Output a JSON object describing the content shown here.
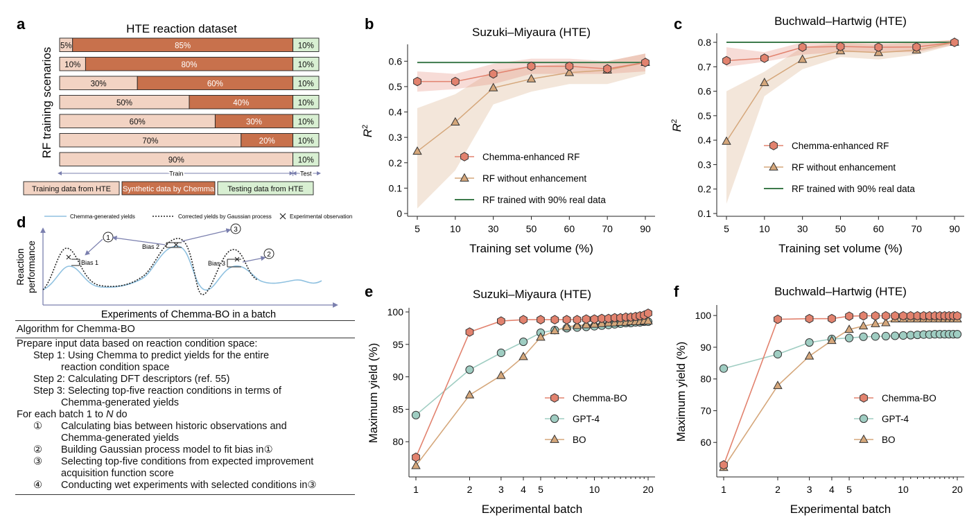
{
  "panel_labels": [
    "a",
    "b",
    "c",
    "d",
    "e",
    "f"
  ],
  "colors": {
    "hte": "#f2d3c3",
    "chemma": "#c8714c",
    "test": "#d8efd2",
    "chemma_rf": "#e2826e",
    "rf": "#d5a77b",
    "real90": "#3c7a4b",
    "gpt4": "#9fcdc2",
    "gp_line": "#222222",
    "yield_line": "#8fc1e0"
  },
  "chart_data": [
    {
      "id": "a",
      "type": "bar",
      "title": "HTE reaction dataset",
      "ylabel": "RF training scenarios",
      "axis_left_label": "Train",
      "axis_right_label": "Test",
      "rows": [
        {
          "hte": 5,
          "chemma": 85,
          "test": 10,
          "labels": [
            "5%",
            "85%",
            "10%"
          ]
        },
        {
          "hte": 10,
          "chemma": 80,
          "test": 10,
          "labels": [
            "10%",
            "80%",
            "10%"
          ]
        },
        {
          "hte": 30,
          "chemma": 60,
          "test": 10,
          "labels": [
            "30%",
            "60%",
            "10%"
          ]
        },
        {
          "hte": 50,
          "chemma": 40,
          "test": 10,
          "labels": [
            "50%",
            "40%",
            "10%"
          ]
        },
        {
          "hte": 60,
          "chemma": 30,
          "test": 10,
          "labels": [
            "60%",
            "30%",
            "10%"
          ]
        },
        {
          "hte": 70,
          "chemma": 20,
          "test": 10,
          "labels": [
            "70%",
            "20%",
            "10%"
          ]
        },
        {
          "hte": 90,
          "chemma": 0,
          "test": 10,
          "labels": [
            "90%",
            "",
            "10%"
          ]
        }
      ],
      "legend": [
        "Training data from HTE",
        "Synthetic data by Chemma",
        "Testing data from HTE"
      ]
    },
    {
      "id": "b",
      "type": "line",
      "title": "Suzuki–Miyaura (HTE)",
      "xlabel": "Training set volume (%)",
      "ylabel": "R",
      "ylabel_sup": "2",
      "categories": [
        "5",
        "10",
        "30",
        "50",
        "60",
        "70",
        "90"
      ],
      "ylim": [
        0,
        0.65
      ],
      "yticks": [
        0,
        0.1,
        0.2,
        0.3,
        0.4,
        0.5,
        0.6
      ],
      "ytick_labels": [
        "0",
        "0.1",
        "0.2",
        "0.3",
        "0.4",
        "0.5",
        "0.6"
      ],
      "series": [
        {
          "name": "Chemma-enhanced RF",
          "values": [
            0.52,
            0.52,
            0.55,
            0.58,
            0.58,
            0.57,
            0.595
          ],
          "lower": [
            0.48,
            0.49,
            0.51,
            0.55,
            0.55,
            0.55,
            0.56
          ],
          "upper": [
            0.56,
            0.55,
            0.59,
            0.61,
            0.61,
            0.6,
            0.63
          ]
        },
        {
          "name": "RF without enhancement",
          "values": [
            0.245,
            0.36,
            0.495,
            0.53,
            0.555,
            0.565,
            0.595
          ],
          "lower": [
            0.02,
            0.17,
            0.43,
            0.48,
            0.51,
            0.51,
            0.55
          ],
          "upper": [
            0.415,
            0.47,
            0.565,
            0.58,
            0.59,
            0.6,
            0.63
          ]
        },
        {
          "name": "RF trained with 90% real data",
          "constant": 0.595
        }
      ]
    },
    {
      "id": "c",
      "type": "line",
      "title": "Buchwald–Hartwig (HTE)",
      "xlabel": "Training set volume (%)",
      "ylabel": "R",
      "ylabel_sup": "2",
      "categories": [
        "5",
        "10",
        "30",
        "50",
        "60",
        "70",
        "90"
      ],
      "ylim": [
        0.1,
        0.82
      ],
      "yticks": [
        0.1,
        0.2,
        0.3,
        0.4,
        0.5,
        0.6,
        0.7,
        0.8
      ],
      "ytick_labels": [
        "0.1",
        "0.2",
        "0.3",
        "0.4",
        "0.5",
        "0.6",
        "0.7",
        "0.8"
      ],
      "series": [
        {
          "name": "Chemma-enhanced RF",
          "values": [
            0.725,
            0.735,
            0.78,
            0.783,
            0.78,
            0.781,
            0.8
          ],
          "lower": [
            0.7,
            0.72,
            0.75,
            0.76,
            0.76,
            0.76,
            0.79
          ],
          "upper": [
            0.78,
            0.76,
            0.8,
            0.8,
            0.8,
            0.8,
            0.81
          ]
        },
        {
          "name": "RF without enhancement",
          "values": [
            0.395,
            0.635,
            0.73,
            0.765,
            0.758,
            0.768,
            0.8
          ],
          "lower": [
            0.14,
            0.58,
            0.69,
            0.74,
            0.73,
            0.75,
            0.79
          ],
          "upper": [
            0.6,
            0.68,
            0.78,
            0.8,
            0.79,
            0.8,
            0.81
          ]
        },
        {
          "name": "RF trained with 90% real data",
          "constant": 0.8
        }
      ]
    },
    {
      "id": "d",
      "type": "line",
      "xlabel": "Experiments of Chemma-BO in a batch",
      "ylabel_lines": [
        "Reaction",
        "performance"
      ],
      "legend": [
        "Chemma-generated yields",
        "Corrected yields by Gaussian process",
        "Experimental observation"
      ],
      "annotations": [
        "Bias 1",
        "Bias 2",
        "Bias 3",
        "①",
        "②",
        "③"
      ]
    },
    {
      "id": "e",
      "type": "line",
      "title": "Suzuki–Miyaura (HTE)",
      "xlabel": "Experimental batch",
      "ylabel": "Maximum yield (%)",
      "xscale": "log",
      "xlim": [
        1,
        20
      ],
      "xticks": [
        1,
        2,
        3,
        4,
        5,
        10,
        20
      ],
      "ylim": [
        75,
        100
      ],
      "yticks": [
        80,
        85,
        90,
        95,
        100
      ],
      "x": [
        1,
        2,
        3,
        4,
        5,
        6,
        7,
        8,
        9,
        10,
        11,
        12,
        13,
        14,
        15,
        16,
        17,
        18,
        19,
        20
      ],
      "series": [
        {
          "name": "Chemma-BO",
          "values": [
            77.6,
            96.9,
            98.6,
            98.8,
            98.8,
            98.8,
            98.8,
            98.8,
            98.9,
            98.9,
            99.0,
            99.0,
            99.1,
            99.1,
            99.2,
            99.2,
            99.3,
            99.4,
            99.5,
            99.8
          ]
        },
        {
          "name": "GPT-4",
          "values": [
            84.1,
            91.1,
            93.7,
            95.4,
            96.8,
            97.2,
            97.5,
            97.6,
            97.7,
            97.8,
            97.9,
            98.0,
            98.1,
            98.2,
            98.3,
            98.3,
            98.4,
            98.4,
            98.5,
            98.5
          ]
        },
        {
          "name": "BO",
          "values": [
            76.3,
            87.2,
            90.2,
            93.1,
            96.1,
            97.1,
            97.7,
            97.9,
            98.0,
            98.1,
            98.2,
            98.3,
            98.3,
            98.4,
            98.4,
            98.5,
            98.5,
            98.5,
            98.6,
            98.6
          ]
        }
      ]
    },
    {
      "id": "f",
      "type": "line",
      "title": "Buchwald–Hartwig (HTE)",
      "xlabel": "Experimental batch",
      "ylabel": "Maximum yield (%)",
      "xscale": "log",
      "xlim": [
        1,
        20
      ],
      "xticks": [
        1,
        2,
        3,
        4,
        5,
        10,
        20
      ],
      "ylim": [
        50,
        102
      ],
      "yticks": [
        60,
        70,
        80,
        90,
        100
      ],
      "x": [
        1,
        2,
        3,
        4,
        5,
        6,
        7,
        8,
        9,
        10,
        11,
        12,
        13,
        14,
        15,
        16,
        17,
        18,
        19,
        20
      ],
      "series": [
        {
          "name": "Chemma-BO",
          "values": [
            52.9,
            98.8,
            99.0,
            99.0,
            99.8,
            99.9,
            99.9,
            99.9,
            99.9,
            99.9,
            99.9,
            99.9,
            99.9,
            99.9,
            99.9,
            99.9,
            99.9,
            99.9,
            99.9,
            99.9
          ]
        },
        {
          "name": "GPT-4",
          "values": [
            83.3,
            87.8,
            91.5,
            92.6,
            92.9,
            93.3,
            93.4,
            93.5,
            93.6,
            93.7,
            93.8,
            93.9,
            94.0,
            94.0,
            94.1,
            94.1,
            94.1,
            94.1,
            94.1,
            94.1
          ]
        },
        {
          "name": "BO",
          "values": [
            52.1,
            77.9,
            87.2,
            92.1,
            95.6,
            96.7,
            97.4,
            97.7,
            98.9,
            98.9,
            98.9,
            98.9,
            98.9,
            98.9,
            98.9,
            98.9,
            98.9,
            98.9,
            98.9,
            98.9
          ]
        }
      ]
    }
  ],
  "algorithm": {
    "title": "Algorithm for Chemma-BO",
    "prepare": "Prepare input data based on reaction condition space:",
    "step1": "Step 1: Using Chemma to predict yields for the entire",
    "step1b": "reaction condition space",
    "step2": "Step 2: Calculating DFT descriptors (ref. 55)",
    "step3": "Step 3: Selecting top-five reaction conditions in terms of",
    "step3b": "Chemma-generated yields",
    "loop_pre": "For each batch 1 to ",
    "loop_n": "N",
    "loop_post": " do",
    "items": [
      {
        "mark": "①",
        "lines": [
          "Calculating bias between historic observations and",
          "Chemma-generated yields"
        ]
      },
      {
        "mark": "②",
        "lines": [
          "Building Gaussian process model to fit bias in①"
        ]
      },
      {
        "mark": "③",
        "lines": [
          "Selecting top-five conditions from expected improvement",
          "acquisition function score"
        ]
      },
      {
        "mark": "④",
        "lines": [
          "Conducting wet experiments with selected conditions in③"
        ]
      }
    ]
  }
}
